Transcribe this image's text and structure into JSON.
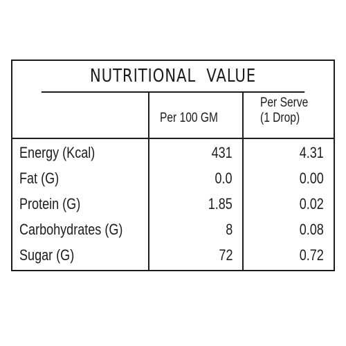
{
  "table": {
    "title": "NUTRITIONAL  VALUE",
    "columns": {
      "per_100": "Per 100 GM",
      "per_serve_line1": "Per Serve",
      "per_serve_line2": "(1 Drop)"
    },
    "rows": [
      {
        "name": "Energy (Kcal)",
        "per_100": "431",
        "per_serve": "4.31"
      },
      {
        "name": "Fat (G)",
        "per_100": "0.0",
        "per_serve": "0.00"
      },
      {
        "name": "Protein (G)",
        "per_100": "1.85",
        "per_serve": "0.02"
      },
      {
        "name": "Carbohydrates (G)",
        "per_100": "8",
        "per_serve": "0.08"
      },
      {
        "name": "Sugar (G)",
        "per_100": "72",
        "per_serve": "0.72"
      }
    ]
  }
}
